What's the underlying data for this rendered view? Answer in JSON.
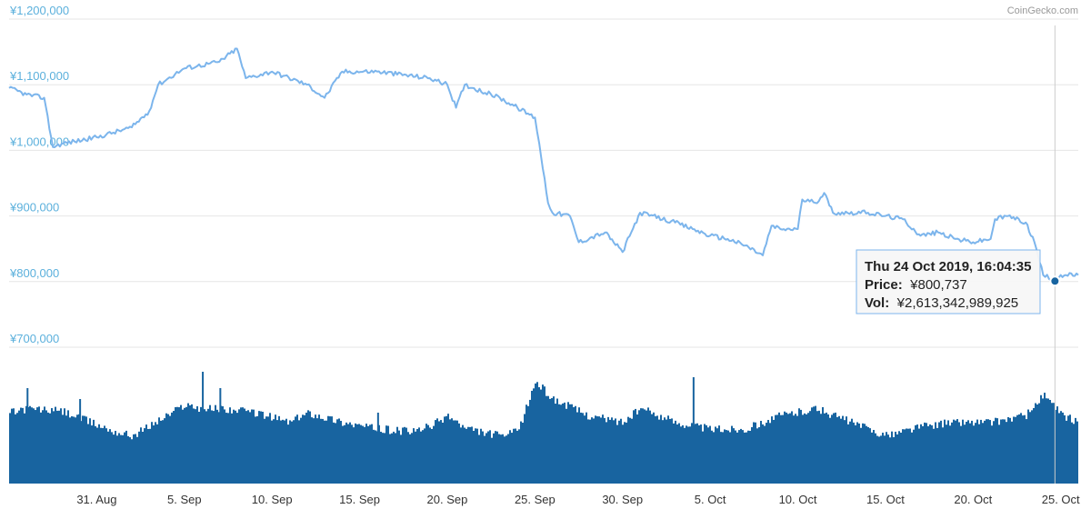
{
  "credit": "CoinGecko.com",
  "colors": {
    "price_line": "#7cb5ec",
    "volume": "#1864a0",
    "grid": "#e6e6e6",
    "axis_label": "#5bb0dc",
    "crosshair": "#cccccc",
    "tooltip_border": "#7cb5ec"
  },
  "tooltip": {
    "title": "Thu 24 Oct 2019, 16:04:35",
    "price_label": "Price:",
    "price_value": "¥800,737",
    "vol_label": "Vol:",
    "vol_value": "¥2,613,342,989,925"
  },
  "chart_data": [
    {
      "type": "line",
      "series": [
        {
          "name": "Price",
          "x_start": "2019-08-26",
          "x_end": "2019-10-26",
          "keypoints": [
            [
              "2019-08-26",
              1095000
            ],
            [
              "2019-08-27",
              1085000
            ],
            [
              "2019-08-28",
              1080000
            ],
            [
              "2019-08-28T12:00",
              1005000
            ],
            [
              "2019-08-29",
              1010000
            ],
            [
              "2019-08-31",
              1020000
            ],
            [
              "2019-09-02",
              1035000
            ],
            [
              "2019-09-03",
              1060000
            ],
            [
              "2019-09-03T12:00",
              1100000
            ],
            [
              "2019-09-05",
              1125000
            ],
            [
              "2019-09-07",
              1135000
            ],
            [
              "2019-09-08",
              1155000
            ],
            [
              "2019-09-08T12:00",
              1110000
            ],
            [
              "2019-09-10",
              1120000
            ],
            [
              "2019-09-12",
              1100000
            ],
            [
              "2019-09-13",
              1080000
            ],
            [
              "2019-09-14",
              1120000
            ],
            [
              "2019-09-16",
              1120000
            ],
            [
              "2019-09-19",
              1110000
            ],
            [
              "2019-09-20",
              1100000
            ],
            [
              "2019-09-20T12:00",
              1065000
            ],
            [
              "2019-09-21",
              1100000
            ],
            [
              "2019-09-23",
              1080000
            ],
            [
              "2019-09-24",
              1065000
            ],
            [
              "2019-09-25",
              1050000
            ],
            [
              "2019-09-25T06:00",
              1010000
            ],
            [
              "2019-09-25T18:00",
              920000
            ],
            [
              "2019-09-26",
              905000
            ],
            [
              "2019-09-27",
              900000
            ],
            [
              "2019-09-27T12:00",
              860000
            ],
            [
              "2019-09-29",
              875000
            ],
            [
              "2019-09-30",
              845000
            ],
            [
              "2019-10-01",
              905000
            ],
            [
              "2019-10-03",
              890000
            ],
            [
              "2019-10-04",
              880000
            ],
            [
              "2019-10-05",
              870000
            ],
            [
              "2019-10-06",
              865000
            ],
            [
              "2019-10-07",
              855000
            ],
            [
              "2019-10-08",
              840000
            ],
            [
              "2019-10-08T12:00",
              885000
            ],
            [
              "2019-10-09",
              880000
            ],
            [
              "2019-10-10",
              880000
            ],
            [
              "2019-10-10T06:00",
              925000
            ],
            [
              "2019-10-11",
              920000
            ],
            [
              "2019-10-11T12:00",
              935000
            ],
            [
              "2019-10-12",
              905000
            ],
            [
              "2019-10-14",
              905000
            ],
            [
              "2019-10-15",
              900000
            ],
            [
              "2019-10-16",
              895000
            ],
            [
              "2019-10-17",
              870000
            ],
            [
              "2019-10-18",
              875000
            ],
            [
              "2019-10-19",
              865000
            ],
            [
              "2019-10-20",
              860000
            ],
            [
              "2019-10-21",
              865000
            ],
            [
              "2019-10-21T06:00",
              895000
            ],
            [
              "2019-10-22",
              900000
            ],
            [
              "2019-10-23",
              890000
            ],
            [
              "2019-10-23T12:00",
              860000
            ],
            [
              "2019-10-24",
              810000
            ],
            [
              "2019-10-24T16:04",
              800737
            ],
            [
              "2019-10-25",
              810000
            ],
            [
              "2019-10-26",
              810000
            ]
          ]
        }
      ],
      "ylim": [
        700000,
        1200000
      ],
      "yticks": [
        "¥1,200,000",
        "¥1,100,000",
        "¥1,000,000",
        "¥900,000",
        "¥800,000",
        "¥700,000"
      ],
      "ytick_values": [
        1200000,
        1100000,
        1000000,
        900000,
        800000,
        700000
      ],
      "grid": true,
      "highlight": {
        "x": "2019-10-24T16:04",
        "y": 800737
      }
    },
    {
      "type": "bar",
      "series": [
        {
          "name": "Vol",
          "x_start": "2019-08-26",
          "x_end": "2019-10-26",
          "keypoints": [
            [
              "2019-08-26",
              0.52
            ],
            [
              "2019-08-27",
              0.55
            ],
            [
              "2019-08-29",
              0.53
            ],
            [
              "2019-09-01",
              0.38
            ],
            [
              "2019-09-02",
              0.35
            ],
            [
              "2019-09-04",
              0.5
            ],
            [
              "2019-09-05",
              0.58
            ],
            [
              "2019-09-06",
              0.55
            ],
            [
              "2019-09-07",
              0.55
            ],
            [
              "2019-09-09",
              0.52
            ],
            [
              "2019-09-11",
              0.45
            ],
            [
              "2019-09-12",
              0.52
            ],
            [
              "2019-09-14",
              0.45
            ],
            [
              "2019-09-16",
              0.4
            ],
            [
              "2019-09-18",
              0.38
            ],
            [
              "2019-09-19",
              0.42
            ],
            [
              "2019-09-20",
              0.5
            ],
            [
              "2019-09-21",
              0.4
            ],
            [
              "2019-09-23",
              0.35
            ],
            [
              "2019-09-24",
              0.38
            ],
            [
              "2019-09-25",
              0.75
            ],
            [
              "2019-09-26",
              0.62
            ],
            [
              "2019-09-28",
              0.5
            ],
            [
              "2019-09-30",
              0.45
            ],
            [
              "2019-10-01",
              0.55
            ],
            [
              "2019-10-03",
              0.45
            ],
            [
              "2019-10-05",
              0.4
            ],
            [
              "2019-10-07",
              0.4
            ],
            [
              "2019-10-09",
              0.5
            ],
            [
              "2019-10-11",
              0.55
            ],
            [
              "2019-10-12",
              0.5
            ],
            [
              "2019-10-14",
              0.4
            ],
            [
              "2019-10-15",
              0.35
            ],
            [
              "2019-10-17",
              0.42
            ],
            [
              "2019-10-19",
              0.45
            ],
            [
              "2019-10-21",
              0.45
            ],
            [
              "2019-10-23",
              0.5
            ],
            [
              "2019-10-24",
              0.65
            ],
            [
              "2019-10-25",
              0.5
            ],
            [
              "2019-10-26",
              0.45
            ]
          ],
          "spikes": [
            [
              "2019-08-27",
              0.7
            ],
            [
              "2019-08-30",
              0.62
            ],
            [
              "2019-09-06",
              0.82
            ],
            [
              "2019-09-07",
              0.7
            ],
            [
              "2019-09-16",
              0.52
            ],
            [
              "2019-10-04",
              0.78
            ]
          ]
        }
      ]
    }
  ],
  "xaxis": {
    "ticks": [
      "31. Aug",
      "5. Sep",
      "10. Sep",
      "15. Sep",
      "20. Sep",
      "25. Sep",
      "30. Sep",
      "5. Oct",
      "10. Oct",
      "15. Oct",
      "20. Oct",
      "25. Oct"
    ],
    "tick_dates": [
      "2019-08-31",
      "2019-09-05",
      "2019-09-10",
      "2019-09-15",
      "2019-09-20",
      "2019-09-25",
      "2019-09-30",
      "2019-10-05",
      "2019-10-10",
      "2019-10-15",
      "2019-10-20",
      "2019-10-25"
    ]
  }
}
